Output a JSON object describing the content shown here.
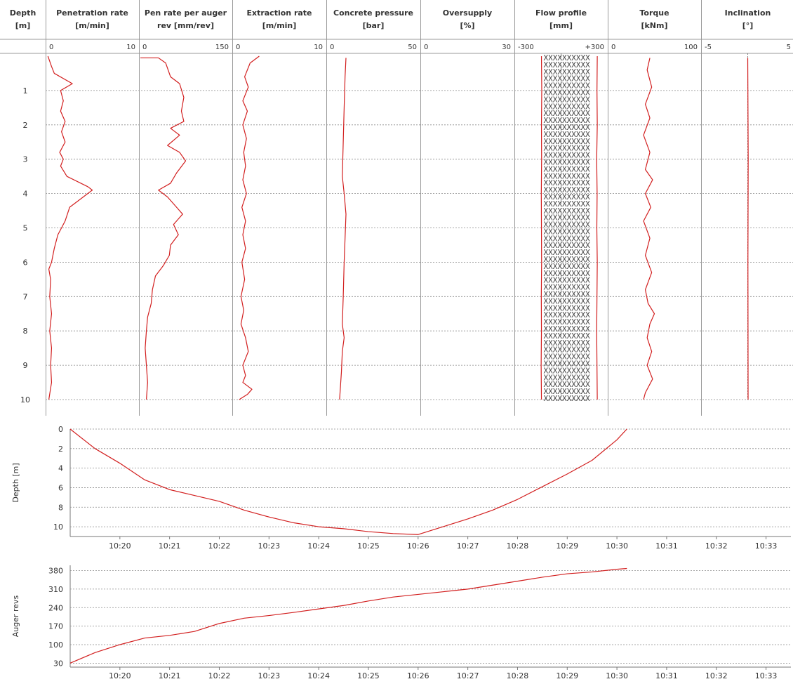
{
  "chart_data": [
    {
      "type": "line",
      "layout": "well-log",
      "depth_header": [
        "Depth",
        "[m]"
      ],
      "depth_ticks": [
        1,
        2,
        3,
        4,
        5,
        6,
        7,
        8,
        9,
        10
      ],
      "ylim": [
        0,
        10
      ],
      "y_inverted": true,
      "grid": "horizontal dashed",
      "color": "#d21f1f",
      "tracks": [
        {
          "header": [
            "Penetration rate",
            "[m/min]"
          ],
          "scale_min": "0",
          "scale_max": "10",
          "xlim": [
            0,
            10
          ],
          "points": [
            [
              0.1,
              0.0
            ],
            [
              0.5,
              0.3
            ],
            [
              0.8,
              0.5
            ],
            [
              2.8,
              0.8
            ],
            [
              1.5,
              1.0
            ],
            [
              1.8,
              1.3
            ],
            [
              1.5,
              1.6
            ],
            [
              2.0,
              1.9
            ],
            [
              1.6,
              2.2
            ],
            [
              2.0,
              2.5
            ],
            [
              1.4,
              2.8
            ],
            [
              1.8,
              3.0
            ],
            [
              1.5,
              3.2
            ],
            [
              2.2,
              3.5
            ],
            [
              4.5,
              3.8
            ],
            [
              5.0,
              3.9
            ],
            [
              4.0,
              4.1
            ],
            [
              2.5,
              4.4
            ],
            [
              2.0,
              4.8
            ],
            [
              1.2,
              5.2
            ],
            [
              0.8,
              5.6
            ],
            [
              0.5,
              6.0
            ],
            [
              0.2,
              6.2
            ],
            [
              0.4,
              6.5
            ],
            [
              0.3,
              7.0
            ],
            [
              0.5,
              7.5
            ],
            [
              0.3,
              8.0
            ],
            [
              0.5,
              8.5
            ],
            [
              0.4,
              9.0
            ],
            [
              0.5,
              9.5
            ],
            [
              0.2,
              10.0
            ]
          ]
        },
        {
          "header": [
            "Pen rate per auger",
            "rev [mm/rev]"
          ],
          "scale_min": "0",
          "scale_max": "150",
          "xlim": [
            0,
            150
          ],
          "points": [
            [
              0,
              0.05
            ],
            [
              30,
              0.05
            ],
            [
              42,
              0.2
            ],
            [
              50,
              0.6
            ],
            [
              65,
              0.8
            ],
            [
              72,
              1.2
            ],
            [
              68,
              1.6
            ],
            [
              72,
              1.9
            ],
            [
              50,
              2.1
            ],
            [
              65,
              2.3
            ],
            [
              45,
              2.6
            ],
            [
              65,
              2.8
            ],
            [
              75,
              3.05
            ],
            [
              60,
              3.4
            ],
            [
              50,
              3.7
            ],
            [
              30,
              3.9
            ],
            [
              45,
              4.1
            ],
            [
              55,
              4.3
            ],
            [
              70,
              4.6
            ],
            [
              55,
              4.9
            ],
            [
              63,
              5.2
            ],
            [
              50,
              5.5
            ],
            [
              48,
              5.8
            ],
            [
              38,
              6.1
            ],
            [
              25,
              6.4
            ],
            [
              20,
              6.8
            ],
            [
              18,
              7.2
            ],
            [
              12,
              7.6
            ],
            [
              10,
              8.0
            ],
            [
              8,
              8.5
            ],
            [
              10,
              9.0
            ],
            [
              12,
              9.5
            ],
            [
              10,
              10.0
            ]
          ]
        },
        {
          "header": [
            "Extraction rate",
            "[m/min]"
          ],
          "scale_min": "0",
          "scale_max": "10",
          "xlim": [
            0,
            10
          ],
          "points": [
            [
              2.8,
              0.0
            ],
            [
              1.8,
              0.2
            ],
            [
              1.2,
              0.6
            ],
            [
              1.6,
              0.9
            ],
            [
              1.0,
              1.3
            ],
            [
              1.5,
              1.6
            ],
            [
              1.0,
              2.0
            ],
            [
              1.4,
              2.4
            ],
            [
              1.1,
              2.8
            ],
            [
              1.3,
              3.2
            ],
            [
              1.0,
              3.6
            ],
            [
              1.4,
              4.0
            ],
            [
              0.9,
              4.4
            ],
            [
              1.3,
              4.8
            ],
            [
              1.0,
              5.2
            ],
            [
              1.3,
              5.6
            ],
            [
              0.9,
              6.0
            ],
            [
              1.2,
              6.5
            ],
            [
              0.8,
              7.0
            ],
            [
              1.1,
              7.4
            ],
            [
              0.8,
              7.8
            ],
            [
              1.3,
              8.2
            ],
            [
              1.6,
              8.6
            ],
            [
              1.0,
              9.0
            ],
            [
              1.3,
              9.3
            ],
            [
              1.0,
              9.5
            ],
            [
              2.0,
              9.7
            ],
            [
              1.5,
              9.85
            ],
            [
              0.6,
              10.0
            ]
          ]
        },
        {
          "header": [
            "Concrete pressure",
            "[bar]"
          ],
          "scale_min": "0",
          "scale_max": "50",
          "xlim": [
            0,
            50
          ],
          "points": [
            [
              10.0,
              0.05
            ],
            [
              9.5,
              0.6
            ],
            [
              9.0,
              1.5
            ],
            [
              8.5,
              2.5
            ],
            [
              8.0,
              3.5
            ],
            [
              9.0,
              4.0
            ],
            [
              10.0,
              4.6
            ],
            [
              9.5,
              5.3
            ],
            [
              9.0,
              6.0
            ],
            [
              8.5,
              7.0
            ],
            [
              8.0,
              7.8
            ],
            [
              9.0,
              8.2
            ],
            [
              8.0,
              8.6
            ],
            [
              7.5,
              9.2
            ],
            [
              7.0,
              9.6
            ],
            [
              6.5,
              10.0
            ]
          ]
        },
        {
          "header": [
            "Oversupply",
            "[%]"
          ],
          "scale_min": "0",
          "scale_max": "30",
          "xlim": [
            0,
            30
          ],
          "points": []
        },
        {
          "header": [
            "Flow profile",
            "[mm]"
          ],
          "scale_min": "-300",
          "scale_max": "+300",
          "xlim": [
            -300,
            300
          ],
          "center_line": true,
          "fill_pattern": "XXXXXXXXXX",
          "left_points": [
            [
              -130,
              0.0
            ],
            [
              -128,
              1.0
            ],
            [
              -130,
              2.0
            ],
            [
              -129,
              3.0
            ],
            [
              -131,
              4.0
            ],
            [
              -130,
              5.0
            ],
            [
              -129,
              6.0
            ],
            [
              -131,
              7.0
            ],
            [
              -130,
              8.0
            ],
            [
              -132,
              9.0
            ],
            [
              -130,
              10.0
            ]
          ],
          "right_points": [
            [
              240,
              0.0
            ],
            [
              238,
              1.0
            ],
            [
              240,
              2.0
            ],
            [
              236,
              3.0
            ],
            [
              239,
              4.0
            ],
            [
              237,
              5.0
            ],
            [
              240,
              6.0
            ],
            [
              238,
              7.0
            ],
            [
              236,
              8.0
            ],
            [
              238,
              9.0
            ],
            [
              240,
              10.0
            ]
          ]
        },
        {
          "header": [
            "Torque",
            "[kNm]"
          ],
          "scale_min": "0",
          "scale_max": "100",
          "xlim": [
            0,
            100
          ],
          "points": [
            [
              45,
              0.05
            ],
            [
              42,
              0.4
            ],
            [
              47,
              0.9
            ],
            [
              40,
              1.4
            ],
            [
              45,
              1.8
            ],
            [
              38,
              2.3
            ],
            [
              45,
              2.8
            ],
            [
              40,
              3.3
            ],
            [
              48,
              3.6
            ],
            [
              40,
              4.0
            ],
            [
              46,
              4.4
            ],
            [
              38,
              4.8
            ],
            [
              45,
              5.3
            ],
            [
              40,
              5.8
            ],
            [
              47,
              6.3
            ],
            [
              40,
              6.8
            ],
            [
              43,
              7.2
            ],
            [
              50,
              7.5
            ],
            [
              45,
              7.8
            ],
            [
              42,
              8.2
            ],
            [
              47,
              8.6
            ],
            [
              42,
              9.0
            ],
            [
              48,
              9.4
            ],
            [
              40,
              9.8
            ],
            [
              38,
              10.0
            ]
          ]
        },
        {
          "header": [
            "Inclination",
            "[°]"
          ],
          "scale_min": "-5",
          "scale_max": "5",
          "xlim": [
            -5,
            5
          ],
          "center_line": true,
          "points": [
            [
              0.0,
              0.05
            ],
            [
              0.05,
              3.0
            ],
            [
              0.02,
              6.0
            ],
            [
              0.04,
              10.0
            ]
          ]
        }
      ]
    },
    {
      "type": "line",
      "ylabel": "Depth [m]",
      "yticks": [
        0,
        2,
        4,
        6,
        8,
        10
      ],
      "ylim": [
        0,
        11
      ],
      "y_inverted": true,
      "x_ticks": [
        "10:20",
        "10:21",
        "10:22",
        "10:23",
        "10:24",
        "10:25",
        "10:26",
        "10:27",
        "10:28",
        "10:29",
        "10:30",
        "10:31",
        "10:32",
        "10:33"
      ],
      "xlim_min": [
        1219.0,
        1233.5
      ],
      "grid": "horizontal dashed",
      "color": "#d21f1f",
      "points": [
        [
          1219.0,
          0.0
        ],
        [
          1219.5,
          2.0
        ],
        [
          1220.0,
          3.5
        ],
        [
          1220.5,
          5.2
        ],
        [
          1221.0,
          6.2
        ],
        [
          1221.5,
          6.8
        ],
        [
          1222.0,
          7.4
        ],
        [
          1222.5,
          8.3
        ],
        [
          1223.0,
          9.0
        ],
        [
          1223.5,
          9.6
        ],
        [
          1224.0,
          10.0
        ],
        [
          1224.5,
          10.2
        ],
        [
          1225.0,
          10.5
        ],
        [
          1225.5,
          10.7
        ],
        [
          1226.0,
          10.8
        ],
        [
          1226.5,
          10.0
        ],
        [
          1227.0,
          9.2
        ],
        [
          1227.5,
          8.3
        ],
        [
          1228.0,
          7.2
        ],
        [
          1228.5,
          5.9
        ],
        [
          1229.0,
          4.6
        ],
        [
          1229.5,
          3.2
        ],
        [
          1230.0,
          1.1
        ],
        [
          1230.2,
          0.0
        ]
      ]
    },
    {
      "type": "line",
      "ylabel": "Auger revs",
      "yticks": [
        30,
        100,
        170,
        240,
        310,
        380
      ],
      "ylim": [
        15,
        400
      ],
      "x_ticks": [
        "10:20",
        "10:21",
        "10:22",
        "10:23",
        "10:24",
        "10:25",
        "10:26",
        "10:27",
        "10:28",
        "10:29",
        "10:30",
        "10:31",
        "10:32",
        "10:33"
      ],
      "xlim_min": [
        1219.0,
        1233.5
      ],
      "grid": "horizontal dashed",
      "color": "#d21f1f",
      "points": [
        [
          1219.0,
          30
        ],
        [
          1219.5,
          70
        ],
        [
          1220.0,
          100
        ],
        [
          1220.5,
          125
        ],
        [
          1221.0,
          135
        ],
        [
          1221.5,
          150
        ],
        [
          1222.0,
          180
        ],
        [
          1222.5,
          200
        ],
        [
          1223.0,
          210
        ],
        [
          1223.5,
          222
        ],
        [
          1224.0,
          235
        ],
        [
          1224.5,
          248
        ],
        [
          1225.0,
          265
        ],
        [
          1225.5,
          280
        ],
        [
          1226.0,
          290
        ],
        [
          1226.5,
          300
        ],
        [
          1227.0,
          310
        ],
        [
          1227.5,
          325
        ],
        [
          1228.0,
          340
        ],
        [
          1228.5,
          355
        ],
        [
          1229.0,
          368
        ],
        [
          1229.5,
          375
        ],
        [
          1230.0,
          385
        ],
        [
          1230.2,
          388
        ]
      ]
    }
  ]
}
